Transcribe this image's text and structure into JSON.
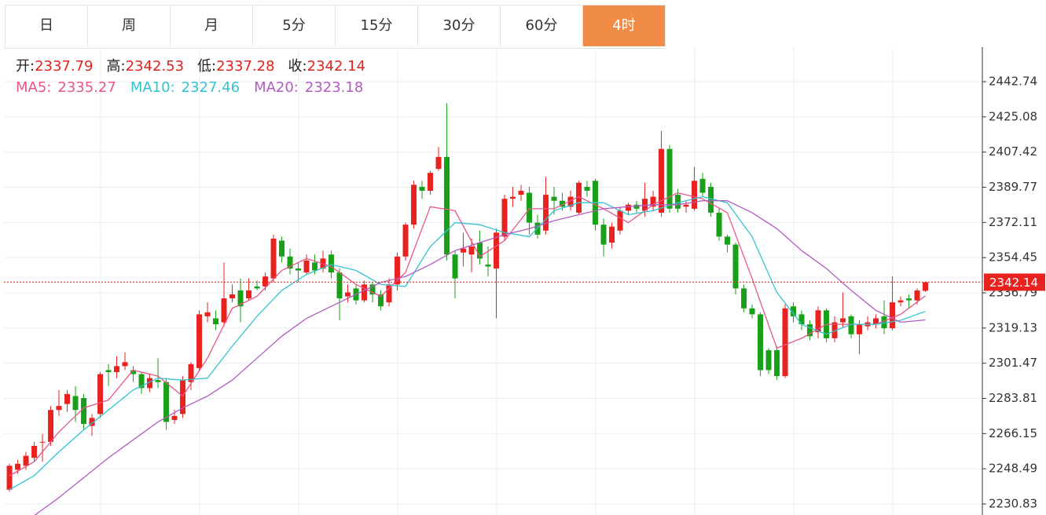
{
  "tabs": [
    "日",
    "周",
    "月",
    "5分",
    "15分",
    "30分",
    "60分",
    "4时"
  ],
  "active_tab": 7,
  "chart_data": {
    "type": "candlestick",
    "ohlc_labels": [
      "开:",
      "高:",
      "低:",
      "收:"
    ],
    "up_color": "#e8221e",
    "down_color": "#18a018",
    "last_color": "#e8221e",
    "xlim": [
      -0.67,
      117.9
    ],
    "ylim": [
      2225.3,
      2460.1
    ],
    "yticks": [
      2442.74,
      2425.08,
      2407.42,
      2389.77,
      2372.11,
      2354.45,
      2336.79,
      2319.13,
      2301.47,
      2283.81,
      2266.15,
      2248.49,
      2230.83
    ],
    "grid": true,
    "ohlc": [
      [
        2238,
        2251,
        2237,
        2250
      ],
      [
        2248,
        2253,
        2246,
        2251
      ],
      [
        2250,
        2257,
        2248,
        2255
      ],
      [
        2254,
        2262,
        2252,
        2260
      ],
      [
        2262,
        2266,
        2252,
        2262
      ],
      [
        2262,
        2280,
        2260,
        2278
      ],
      [
        2278,
        2288,
        2275,
        2280
      ],
      [
        2281,
        2288,
        2277,
        2286
      ],
      [
        2285,
        2290,
        2272,
        2278
      ],
      [
        2284,
        2286,
        2268,
        2271
      ],
      [
        2270,
        2276,
        2265,
        2274
      ],
      [
        2276,
        2297,
        2274,
        2296
      ],
      [
        2298,
        2301,
        2290,
        2297
      ],
      [
        2297,
        2305,
        2294,
        2300
      ],
      [
        2300,
        2307,
        2298,
        2302
      ],
      [
        2298,
        2300,
        2292,
        2296
      ],
      [
        2296,
        2297,
        2286,
        2289
      ],
      [
        2289,
        2296,
        2287,
        2294
      ],
      [
        2293,
        2304,
        2289,
        2292
      ],
      [
        2292,
        2294,
        2268,
        2272
      ],
      [
        2273,
        2278,
        2271,
        2275
      ],
      [
        2276,
        2295,
        2274,
        2293
      ],
      [
        2292,
        2302,
        2288,
        2301
      ],
      [
        2299,
        2328,
        2298,
        2326
      ],
      [
        2325,
        2332,
        2322,
        2327
      ],
      [
        2324,
        2328,
        2318,
        2321
      ],
      [
        2322,
        2352,
        2320,
        2334
      ],
      [
        2334,
        2341,
        2332,
        2336
      ],
      [
        2338,
        2344,
        2322,
        2330
      ],
      [
        2334,
        2344,
        2333,
        2338
      ],
      [
        2340,
        2343,
        2338,
        2339
      ],
      [
        2340,
        2347,
        2338,
        2345
      ],
      [
        2344,
        2366,
        2342,
        2364
      ],
      [
        2363,
        2365,
        2352,
        2355
      ],
      [
        2355,
        2359,
        2346,
        2349
      ],
      [
        2349,
        2352,
        2342,
        2348
      ],
      [
        2347,
        2356,
        2346,
        2353
      ],
      [
        2352,
        2356,
        2346,
        2348
      ],
      [
        2349,
        2358,
        2347,
        2354
      ],
      [
        2356,
        2358,
        2344,
        2347
      ],
      [
        2347,
        2349,
        2323,
        2334
      ],
      [
        2335,
        2341,
        2332,
        2337
      ],
      [
        2339,
        2341,
        2331,
        2333
      ],
      [
        2333,
        2343,
        2332,
        2341
      ],
      [
        2341,
        2342,
        2332,
        2336
      ],
      [
        2336,
        2338,
        2328,
        2330
      ],
      [
        2332,
        2344,
        2330,
        2341
      ],
      [
        2341,
        2357,
        2338,
        2355
      ],
      [
        2355,
        2372,
        2353,
        2371
      ],
      [
        2371,
        2393,
        2369,
        2391
      ],
      [
        2390,
        2393,
        2384,
        2388
      ],
      [
        2388,
        2398,
        2386,
        2397
      ],
      [
        2399,
        2410,
        2398,
        2405
      ],
      [
        2405,
        2432,
        2353,
        2356
      ],
      [
        2356,
        2358,
        2334,
        2344
      ],
      [
        2357,
        2367,
        2350,
        2359
      ],
      [
        2356,
        2364,
        2347,
        2360
      ],
      [
        2362,
        2368,
        2351,
        2354
      ],
      [
        2351,
        2360,
        2345,
        2350
      ],
      [
        2349,
        2369,
        2324,
        2367
      ],
      [
        2365,
        2386,
        2363,
        2384
      ],
      [
        2384,
        2390,
        2380,
        2385
      ],
      [
        2386,
        2391,
        2383,
        2388
      ],
      [
        2387,
        2390,
        2366,
        2372
      ],
      [
        2372,
        2376,
        2364,
        2366
      ],
      [
        2368,
        2395,
        2366,
        2386
      ],
      [
        2385,
        2390,
        2376,
        2383
      ],
      [
        2383,
        2387,
        2378,
        2380
      ],
      [
        2380,
        2388,
        2378,
        2385
      ],
      [
        2377,
        2393,
        2376,
        2392
      ],
      [
        2390,
        2393,
        2385,
        2388
      ],
      [
        2393,
        2394,
        2368,
        2371
      ],
      [
        2371,
        2374,
        2355,
        2361
      ],
      [
        2362,
        2372,
        2359,
        2370
      ],
      [
        2368,
        2380,
        2366,
        2378
      ],
      [
        2378,
        2382,
        2376,
        2381
      ],
      [
        2381,
        2383,
        2377,
        2379
      ],
      [
        2378,
        2392,
        2375,
        2384
      ],
      [
        2380,
        2388,
        2378,
        2385
      ],
      [
        2377,
        2418,
        2375,
        2409
      ],
      [
        2409,
        2411,
        2377,
        2379
      ],
      [
        2386,
        2389,
        2377,
        2379
      ],
      [
        2380,
        2383,
        2377,
        2381
      ],
      [
        2379,
        2400,
        2378,
        2393
      ],
      [
        2394,
        2397,
        2385,
        2387
      ],
      [
        2390,
        2392,
        2375,
        2377
      ],
      [
        2377,
        2379,
        2363,
        2365
      ],
      [
        2365,
        2366,
        2357,
        2361
      ],
      [
        2361,
        2362,
        2336,
        2339
      ],
      [
        2339,
        2341,
        2327,
        2329
      ],
      [
        2329,
        2331,
        2324,
        2326
      ],
      [
        2326,
        2327,
        2295,
        2298
      ],
      [
        2308,
        2309,
        2296,
        2298
      ],
      [
        2308,
        2310,
        2293,
        2295
      ],
      [
        2295,
        2331,
        2294,
        2329
      ],
      [
        2330,
        2332,
        2322,
        2325
      ],
      [
        2326,
        2328,
        2318,
        2321
      ],
      [
        2321,
        2323,
        2313,
        2315
      ],
      [
        2317,
        2330,
        2314,
        2328
      ],
      [
        2328,
        2329,
        2312,
        2314
      ],
      [
        2314,
        2325,
        2312,
        2322
      ],
      [
        2322,
        2337,
        2319,
        2324
      ],
      [
        2325,
        2326,
        2314,
        2316
      ],
      [
        2316,
        2323,
        2306,
        2321
      ],
      [
        2320,
        2325,
        2318,
        2322
      ],
      [
        2321,
        2326,
        2319,
        2324
      ],
      [
        2325,
        2333,
        2316,
        2319
      ],
      [
        2319,
        2345,
        2318,
        2332
      ],
      [
        2332,
        2335,
        2330,
        2333
      ],
      [
        2334,
        2336,
        2329,
        2333
      ],
      [
        2333,
        2339,
        2331,
        2338
      ],
      [
        2337.79,
        2342.53,
        2337.28,
        2342.14
      ]
    ],
    "series": [
      {
        "name": "MA5:",
        "color": "#e8558a",
        "x": [
          0,
          3,
          6,
          9,
          12,
          15,
          18,
          21,
          24,
          27,
          30,
          33,
          36,
          39,
          42,
          45,
          48,
          51,
          54,
          57,
          60,
          63,
          66,
          69,
          72,
          75,
          78,
          81,
          84,
          87,
          90,
          93,
          96,
          99,
          102,
          105,
          108,
          111
        ],
        "values": [
          2245,
          2252,
          2267,
          2279,
          2283,
          2298,
          2295,
          2285,
          2304,
          2329,
          2335,
          2348,
          2354,
          2350,
          2341,
          2335,
          2347,
          2380,
          2378,
          2355,
          2363,
          2379,
          2379,
          2385,
          2379,
          2372,
          2381,
          2387,
          2384,
          2377,
          2344,
          2309,
          2314,
          2321,
          2321,
          2321,
          2326,
          2335.27
        ]
      },
      {
        "name": "MA10:",
        "color": "#33c3d1",
        "x": [
          0,
          3,
          6,
          9,
          12,
          15,
          18,
          21,
          24,
          27,
          30,
          33,
          36,
          39,
          42,
          45,
          48,
          51,
          54,
          57,
          60,
          63,
          66,
          69,
          72,
          75,
          78,
          81,
          84,
          87,
          90,
          93,
          96,
          99,
          102,
          105,
          108,
          111
        ],
        "values": [
          2238,
          2245,
          2257,
          2268,
          2278,
          2288,
          2294,
          2293,
          2294,
          2310,
          2325,
          2338,
          2346,
          2351,
          2348,
          2341,
          2340,
          2360,
          2372,
          2371,
          2367,
          2365,
          2378,
          2382,
          2382,
          2376,
          2378,
          2382,
          2385,
          2382,
          2365,
          2337,
          2321,
          2316,
          2321,
          2321,
          2323,
          2327.46
        ]
      },
      {
        "name": "MA20:",
        "color": "#b25cc3",
        "x": [
          0,
          3,
          6,
          9,
          12,
          15,
          18,
          21,
          24,
          27,
          30,
          33,
          36,
          39,
          42,
          45,
          48,
          51,
          54,
          57,
          60,
          63,
          66,
          69,
          72,
          75,
          78,
          81,
          84,
          87,
          90,
          93,
          96,
          99,
          102,
          105,
          108,
          111
        ],
        "values": [
          2218,
          2225,
          2234,
          2244,
          2254,
          2263,
          2272,
          2279,
          2285,
          2293,
          2304,
          2315,
          2324,
          2330,
          2336,
          2342,
          2345,
          2351,
          2358,
          2362,
          2366,
          2369,
          2373,
          2376,
          2379,
          2380,
          2381,
          2381,
          2383,
          2383,
          2377,
          2369,
          2358,
          2349,
          2338,
          2328,
          2322,
          2323.18
        ]
      }
    ]
  }
}
